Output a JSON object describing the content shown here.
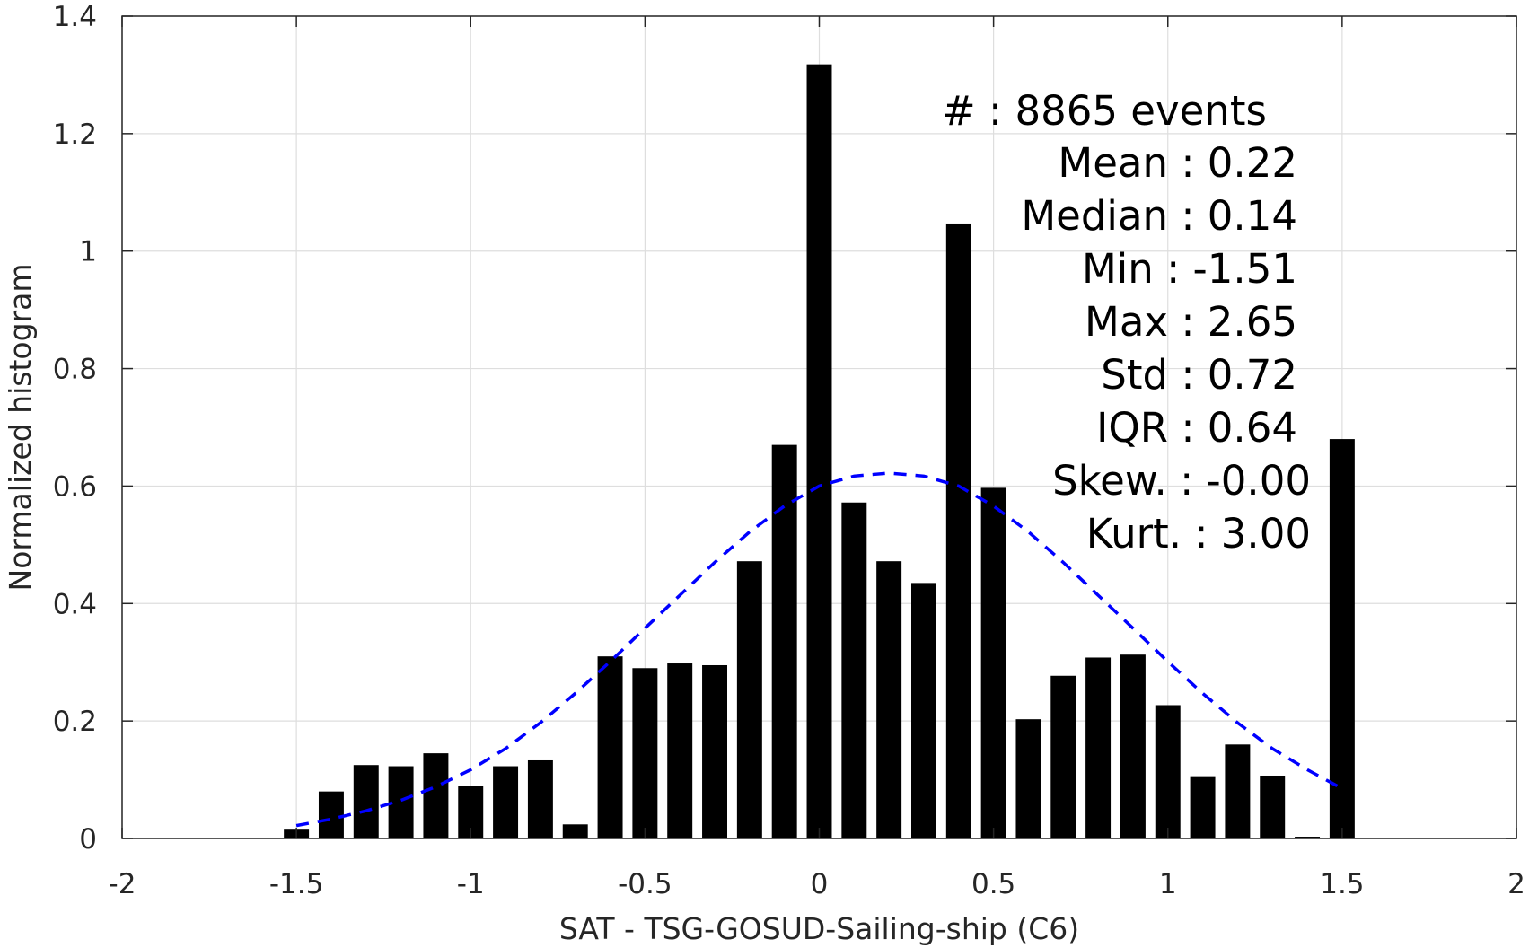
{
  "chart_data": {
    "type": "bar",
    "xlabel": "SAT - TSG-GOSUD-Sailing-ship (C6)",
    "ylabel": "Normalized histogram",
    "xlim": [
      -2,
      2
    ],
    "ylim": [
      0,
      1.4
    ],
    "xticks": [
      "-2",
      "-1.5",
      "-1",
      "-0.5",
      "0",
      "0.5",
      "1",
      "1.5",
      "2"
    ],
    "yticks": [
      "0",
      "0.2",
      "0.4",
      "0.6",
      "0.8",
      "1",
      "1.2",
      "1.4"
    ],
    "grid": true,
    "bar_color": "#000000",
    "fit_color": "#0000ff",
    "bars": {
      "x": [
        -1.5,
        -1.4,
        -1.3,
        -1.2,
        -1.1,
        -1.0,
        -0.9,
        -0.8,
        -0.7,
        -0.6,
        -0.5,
        -0.4,
        -0.3,
        -0.2,
        -0.1,
        0.0,
        0.1,
        0.2,
        0.3,
        0.4,
        0.5,
        0.6,
        0.7,
        0.8,
        0.9,
        1.0,
        1.1,
        1.2,
        1.3,
        1.4,
        1.5
      ],
      "values": [
        0.015,
        0.08,
        0.125,
        0.123,
        0.145,
        0.09,
        0.123,
        0.133,
        0.024,
        0.31,
        0.29,
        0.298,
        0.295,
        0.472,
        0.67,
        1.318,
        0.572,
        0.472,
        0.435,
        1.047,
        0.597,
        0.203,
        0.277,
        0.308,
        0.313,
        0.227,
        0.106,
        0.16,
        0.107,
        0.003,
        0.68
      ]
    },
    "fit": {
      "style": "dashed",
      "x": [
        -1.5,
        -1.4,
        -1.3,
        -1.2,
        -1.1,
        -1.0,
        -0.9,
        -0.8,
        -0.7,
        -0.6,
        -0.5,
        -0.4,
        -0.3,
        -0.2,
        -0.1,
        0.0,
        0.1,
        0.2,
        0.3,
        0.4,
        0.5,
        0.6,
        0.7,
        0.8,
        0.9,
        1.0,
        1.1,
        1.2,
        1.3,
        1.4,
        1.5
      ],
      "y": [
        0.022,
        0.033,
        0.047,
        0.065,
        0.088,
        0.117,
        0.153,
        0.197,
        0.247,
        0.301,
        0.358,
        0.414,
        0.47,
        0.522,
        0.566,
        0.6,
        0.617,
        0.622,
        0.617,
        0.6,
        0.566,
        0.522,
        0.47,
        0.414,
        0.358,
        0.301,
        0.247,
        0.197,
        0.153,
        0.117,
        0.085
      ]
    },
    "stats": [
      "#  : 8865 events",
      "Mean : 0.22",
      "Median : 0.14",
      "Min : -1.51",
      "Max : 2.65",
      "Std : 0.72",
      "IQR : 0.64",
      "Skew. : -0.00",
      "Kurt. : 3.00"
    ]
  }
}
